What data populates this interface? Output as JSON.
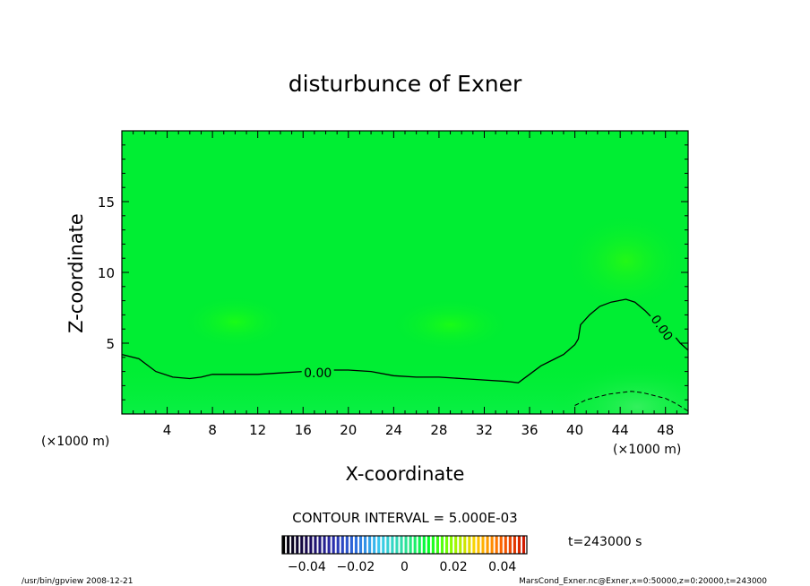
{
  "chart_data": {
    "type": "contour",
    "title": "disturbunce of Exner",
    "xlabel": "X-coordinate",
    "ylabel": "Z-coordinate",
    "x_unit": "(×1000 m)",
    "y_unit": "(×1000 m)",
    "xlim": [
      0,
      50
    ],
    "ylim": [
      0,
      20
    ],
    "x_ticks": [
      4,
      8,
      12,
      16,
      20,
      24,
      28,
      32,
      36,
      40,
      44,
      48
    ],
    "y_ticks": [
      5,
      10,
      15
    ],
    "contour_interval_text": "CONTOUR INTERVAL = 5.000E-03",
    "time_text": "t=243000 s",
    "colorbar": {
      "ticks": [
        "−0.04",
        "−0.02",
        "0",
        "0.02",
        "0.04"
      ],
      "tick_values": [
        -0.04,
        -0.02,
        0,
        0.02,
        0.04
      ],
      "range": [
        -0.05,
        0.05
      ],
      "colors": [
        "#000000",
        "#1a0a55",
        "#2a2aa8",
        "#2f6fe0",
        "#38c8f0",
        "#2fe0a0",
        "#00ff2a",
        "#90ff00",
        "#ffd000",
        "#ff6a00",
        "#d01a00"
      ]
    },
    "background_color": "#00ee33",
    "contours": [
      {
        "level_label": "0.00",
        "style": "solid",
        "points": [
          [
            0,
            4.2
          ],
          [
            1.5,
            3.9
          ],
          [
            3,
            3.0
          ],
          [
            4.5,
            2.6
          ],
          [
            6,
            2.5
          ],
          [
            7,
            2.6
          ],
          [
            8,
            2.8
          ],
          [
            10,
            2.8
          ],
          [
            12,
            2.8
          ],
          [
            14,
            2.9
          ],
          [
            16,
            3.0
          ],
          [
            18,
            3.1
          ],
          [
            20,
            3.1
          ],
          [
            22,
            3.0
          ],
          [
            24,
            2.7
          ],
          [
            26,
            2.6
          ],
          [
            28,
            2.6
          ],
          [
            30,
            2.5
          ],
          [
            32,
            2.4
          ],
          [
            34,
            2.3
          ],
          [
            35,
            2.2
          ],
          [
            36,
            2.8
          ],
          [
            37,
            3.4
          ],
          [
            38,
            3.8
          ],
          [
            39,
            4.2
          ],
          [
            40,
            4.9
          ],
          [
            40.3,
            5.3
          ],
          [
            40.5,
            6.3
          ],
          [
            41.3,
            7.0
          ],
          [
            42.2,
            7.6
          ],
          [
            43.2,
            7.9
          ],
          [
            44.5,
            8.1
          ],
          [
            45.3,
            7.9
          ],
          [
            46.2,
            7.3
          ],
          [
            46.8,
            6.8
          ]
        ]
      },
      {
        "level_label": "0.00",
        "style": "solid",
        "points": [
          [
            48.5,
            5.8
          ],
          [
            49.3,
            5.0
          ],
          [
            50,
            4.5
          ]
        ]
      },
      {
        "level_label": "",
        "style": "dashed",
        "points": [
          [
            40,
            0.6
          ],
          [
            41,
            1.0
          ],
          [
            42,
            1.2
          ],
          [
            43,
            1.4
          ],
          [
            44,
            1.5
          ],
          [
            45,
            1.6
          ],
          [
            46,
            1.5
          ],
          [
            47,
            1.3
          ],
          [
            48,
            1.1
          ],
          [
            49,
            0.7
          ],
          [
            50,
            0.2
          ]
        ]
      }
    ],
    "contour_labels": [
      {
        "text": "0.00",
        "x": 17.3,
        "y": 2.9,
        "rotate": 0
      },
      {
        "text": "0.00",
        "x": 47.7,
        "y": 6.1,
        "rotate": 55
      }
    ]
  },
  "footer": {
    "left": "/usr/bin/gpview   2008-12-21",
    "right": "MarsCond_Exner.nc@Exner,x=0:50000,z=0:20000,t=243000"
  }
}
